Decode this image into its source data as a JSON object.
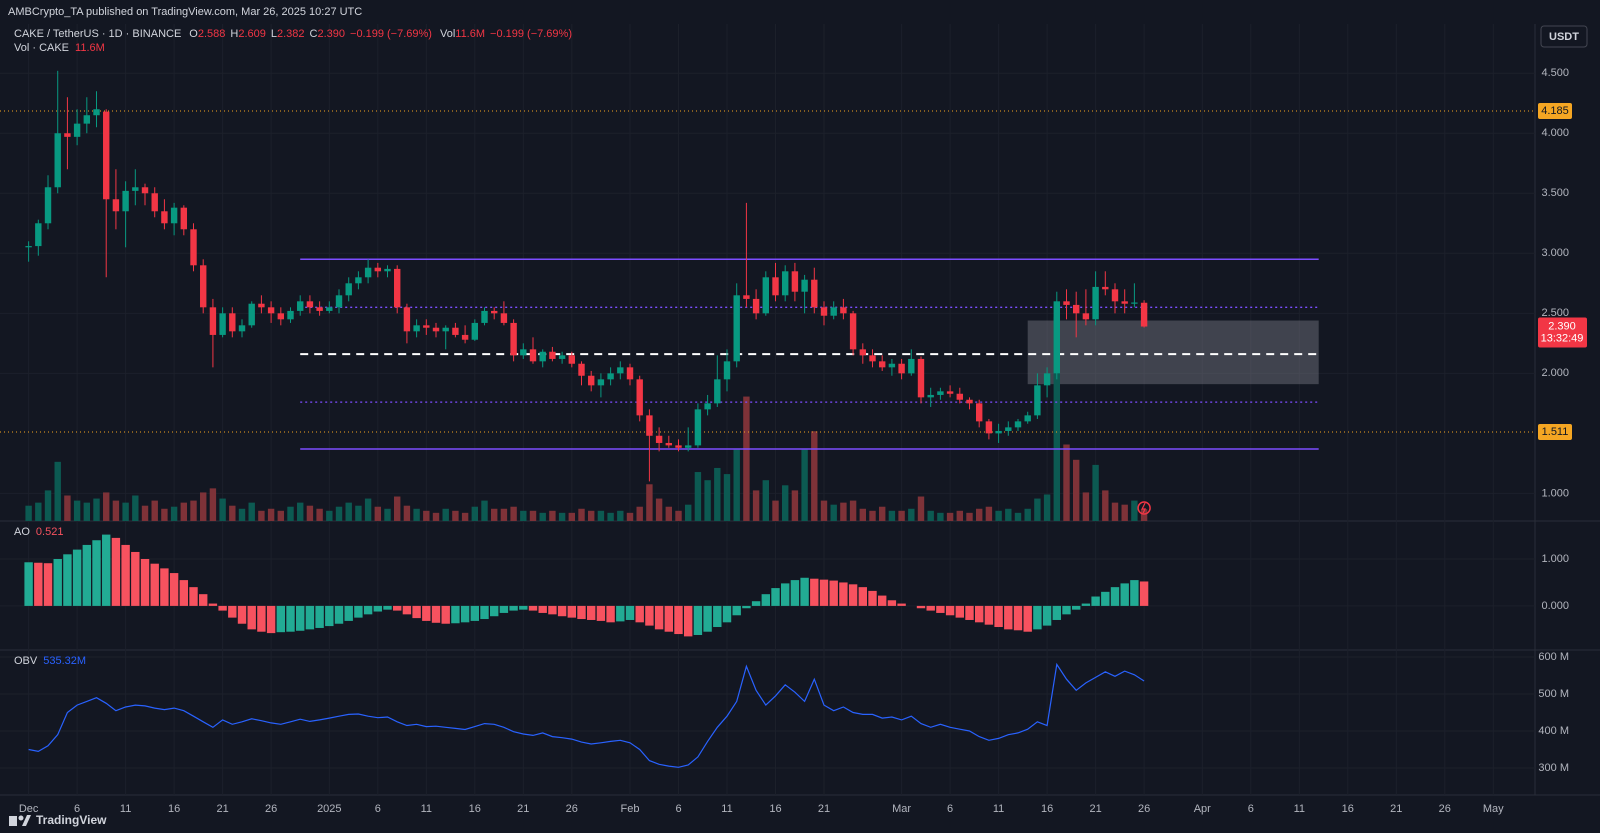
{
  "page": {
    "published": "AMBCrypto_TA published on TradingView.com, Mar 26, 2025 10:27 UTC",
    "brand": "TradingView"
  },
  "chart_data": [
    {
      "type": "candlestick",
      "symbol": "CAKE / TetherUS · 1D · BINANCE",
      "ohlc_legend": [
        {
          "label": "O",
          "value": "2.588"
        },
        {
          "label": "H",
          "value": "2.609"
        },
        {
          "label": "L",
          "value": "2.382"
        },
        {
          "label": "C",
          "value": "2.390"
        }
      ],
      "change": "−0.199 (−7.69%)",
      "volume_legend": {
        "label": "Vol",
        "value": "11.6M",
        "change": "−0.199 (−7.69%)"
      },
      "volume_title": "Vol · CAKE",
      "volume_value": "11.6M",
      "currency": "USDT",
      "colors": {
        "up": "#089981",
        "down": "#f23645",
        "volume_up": "#0c5a52",
        "volume_down": "#7e3238"
      },
      "open": [
        3.05,
        3.06,
        3.25,
        3.55,
        4.0,
        3.97,
        4.08,
        4.15,
        4.18,
        3.45,
        3.35,
        3.52,
        3.55,
        3.5,
        3.35,
        3.25,
        3.38,
        3.2,
        2.9,
        2.55,
        2.32,
        2.5,
        2.35,
        2.4,
        2.58,
        2.55,
        2.5,
        2.45,
        2.52,
        2.6,
        2.55,
        2.52,
        2.55,
        2.65,
        2.75,
        2.8,
        2.88,
        2.85,
        2.87,
        2.55,
        2.35,
        2.4,
        2.38,
        2.35,
        2.38,
        2.32,
        2.28,
        2.42,
        2.52,
        2.5,
        2.42,
        2.15,
        2.2,
        2.1,
        2.18,
        2.12,
        2.15,
        2.08,
        1.98,
        1.9,
        1.95,
        2.0,
        2.05,
        1.95,
        1.65,
        1.48,
        1.42,
        1.4,
        1.38,
        1.4,
        1.7,
        1.75,
        1.95,
        2.1,
        2.65,
        2.62,
        2.5,
        2.8,
        2.65,
        2.85,
        2.68,
        2.78,
        2.55,
        2.48,
        2.55,
        2.5,
        2.2,
        2.15,
        2.1,
        2.05,
        2.08,
        2.0,
        2.12,
        1.8,
        1.82,
        1.85,
        1.83,
        1.78,
        1.75,
        1.6,
        1.5,
        1.52,
        1.55,
        1.6,
        1.65,
        1.9,
        2.0,
        2.6,
        2.57,
        2.5,
        2.45,
        2.72,
        2.7,
        2.6,
        2.58,
        2.588
      ],
      "high": [
        3.1,
        3.28,
        3.65,
        4.52,
        4.3,
        4.2,
        4.3,
        4.35,
        4.2,
        3.7,
        3.6,
        3.7,
        3.58,
        3.55,
        3.45,
        3.42,
        3.4,
        3.25,
        2.95,
        2.62,
        2.55,
        2.55,
        2.45,
        2.6,
        2.65,
        2.6,
        2.55,
        2.55,
        2.65,
        2.65,
        2.6,
        2.6,
        2.7,
        2.8,
        2.85,
        2.95,
        2.92,
        2.9,
        2.9,
        2.58,
        2.45,
        2.45,
        2.42,
        2.4,
        2.42,
        2.4,
        2.45,
        2.55,
        2.55,
        2.6,
        2.45,
        2.25,
        2.3,
        2.2,
        2.22,
        2.18,
        2.18,
        2.1,
        2.02,
        2.0,
        2.05,
        2.1,
        2.08,
        1.98,
        1.7,
        1.55,
        1.48,
        1.45,
        1.55,
        1.75,
        1.82,
        2.15,
        2.2,
        2.75,
        3.42,
        2.7,
        2.85,
        2.92,
        2.9,
        2.92,
        2.82,
        2.88,
        2.6,
        2.6,
        2.62,
        2.52,
        2.25,
        2.2,
        2.15,
        2.12,
        2.12,
        2.2,
        2.14,
        1.88,
        1.88,
        1.9,
        1.88,
        1.8,
        1.78,
        1.62,
        1.58,
        1.6,
        1.62,
        1.68,
        2.0,
        2.05,
        2.68,
        2.7,
        2.68,
        2.7,
        2.85,
        2.85,
        2.75,
        2.7,
        2.75,
        2.609
      ],
      "low": [
        2.93,
        2.98,
        3.2,
        3.5,
        3.7,
        3.9,
        4.0,
        4.05,
        2.8,
        3.2,
        3.05,
        3.4,
        3.4,
        3.3,
        3.2,
        3.15,
        3.15,
        2.85,
        2.5,
        2.05,
        2.3,
        2.3,
        2.3,
        2.38,
        2.5,
        2.42,
        2.4,
        2.42,
        2.48,
        2.5,
        2.48,
        2.5,
        2.5,
        2.6,
        2.7,
        2.75,
        2.8,
        2.8,
        2.5,
        2.25,
        2.3,
        2.32,
        2.3,
        2.2,
        2.3,
        2.25,
        2.27,
        2.4,
        2.45,
        2.4,
        2.1,
        2.12,
        2.08,
        2.05,
        2.1,
        2.08,
        2.05,
        1.9,
        1.85,
        1.8,
        1.9,
        1.95,
        1.9,
        1.6,
        1.1,
        1.35,
        1.38,
        1.35,
        1.35,
        1.38,
        1.65,
        1.72,
        1.85,
        2.05,
        2.55,
        2.45,
        2.48,
        2.6,
        2.6,
        2.6,
        2.5,
        2.5,
        2.4,
        2.45,
        2.45,
        2.15,
        2.08,
        2.05,
        2.02,
        1.98,
        1.95,
        1.98,
        1.75,
        1.72,
        1.78,
        1.8,
        1.75,
        1.7,
        1.55,
        1.45,
        1.42,
        1.48,
        1.52,
        1.58,
        1.62,
        1.8,
        1.95,
        2.45,
        2.3,
        2.4,
        2.4,
        2.65,
        2.5,
        2.5,
        2.55,
        2.382
      ],
      "close": [
        3.06,
        3.25,
        3.55,
        4.0,
        3.97,
        4.08,
        4.15,
        4.2,
        3.45,
        3.35,
        3.52,
        3.55,
        3.5,
        3.35,
        3.25,
        3.38,
        3.2,
        2.9,
        2.55,
        2.32,
        2.5,
        2.35,
        2.4,
        2.58,
        2.55,
        2.5,
        2.45,
        2.52,
        2.6,
        2.55,
        2.52,
        2.55,
        2.65,
        2.75,
        2.8,
        2.88,
        2.85,
        2.87,
        2.55,
        2.35,
        2.4,
        2.38,
        2.35,
        2.38,
        2.32,
        2.28,
        2.42,
        2.52,
        2.5,
        2.42,
        2.15,
        2.2,
        2.1,
        2.18,
        2.12,
        2.15,
        2.08,
        1.98,
        1.9,
        1.95,
        2.0,
        2.05,
        1.95,
        1.65,
        1.48,
        1.42,
        1.4,
        1.38,
        1.4,
        1.7,
        1.75,
        1.95,
        2.1,
        2.65,
        2.62,
        2.5,
        2.8,
        2.65,
        2.85,
        2.68,
        2.78,
        2.55,
        2.48,
        2.55,
        2.5,
        2.2,
        2.15,
        2.1,
        2.05,
        2.08,
        2.0,
        2.12,
        1.8,
        1.82,
        1.85,
        1.83,
        1.78,
        1.75,
        1.6,
        1.5,
        1.52,
        1.55,
        1.6,
        1.65,
        1.9,
        2.0,
        2.6,
        2.57,
        2.5,
        2.45,
        2.72,
        2.7,
        2.6,
        2.58,
        2.59,
        2.39
      ],
      "volume": [
        15,
        18,
        30,
        58,
        25,
        20,
        18,
        22,
        28,
        20,
        18,
        25,
        15,
        20,
        12,
        14,
        18,
        20,
        28,
        32,
        22,
        15,
        12,
        18,
        10,
        12,
        10,
        14,
        18,
        15,
        12,
        10,
        14,
        18,
        15,
        22,
        14,
        12,
        24,
        15,
        12,
        10,
        8,
        12,
        10,
        8,
        14,
        20,
        12,
        12,
        14,
        10,
        10,
        8,
        10,
        8,
        8,
        12,
        10,
        10,
        8,
        10,
        8,
        14,
        36,
        22,
        14,
        10,
        16,
        48,
        40,
        52,
        46,
        70,
        122,
        30,
        40,
        20,
        35,
        30,
        70,
        88,
        20,
        16,
        18,
        20,
        12,
        10,
        14,
        10,
        10,
        12,
        24,
        10,
        8,
        8,
        10,
        8,
        12,
        14,
        10,
        12,
        8,
        12,
        22,
        26,
        200,
        75,
        60,
        28,
        55,
        30,
        18,
        16,
        20,
        11.6
      ],
      "xlim": [
        -2.95,
        155.3
      ],
      "xticks": [
        {
          "value": 0,
          "label": "Dec"
        },
        {
          "value": 5,
          "label": "6"
        },
        {
          "value": 10,
          "label": "11"
        },
        {
          "value": 15,
          "label": "16"
        },
        {
          "value": 20,
          "label": "21"
        },
        {
          "value": 25,
          "label": "26"
        },
        {
          "value": 31,
          "label": "2025"
        },
        {
          "value": 36,
          "label": "6"
        },
        {
          "value": 41,
          "label": "11"
        },
        {
          "value": 46,
          "label": "16"
        },
        {
          "value": 51,
          "label": "21"
        },
        {
          "value": 56,
          "label": "26"
        },
        {
          "value": 62,
          "label": "Feb"
        },
        {
          "value": 67,
          "label": "6"
        },
        {
          "value": 72,
          "label": "11"
        },
        {
          "value": 77,
          "label": "16"
        },
        {
          "value": 82,
          "label": "21"
        },
        {
          "value": 90,
          "label": "Mar"
        },
        {
          "value": 95,
          "label": "6"
        },
        {
          "value": 100,
          "label": "11"
        },
        {
          "value": 105,
          "label": "16"
        },
        {
          "value": 110,
          "label": "21"
        },
        {
          "value": 115,
          "label": "26"
        },
        {
          "value": 121,
          "label": "Apr"
        },
        {
          "value": 126,
          "label": "6"
        },
        {
          "value": 131,
          "label": "11"
        },
        {
          "value": 136,
          "label": "16"
        },
        {
          "value": 141,
          "label": "21"
        },
        {
          "value": 146,
          "label": "26"
        },
        {
          "value": 151,
          "label": "May"
        }
      ],
      "ylim": [
        0.77,
        4.91
      ],
      "yticks": [
        {
          "value": 1,
          "label": "1.000"
        },
        {
          "value": 2,
          "label": "2.000"
        },
        {
          "value": 2.5,
          "label": "2.500"
        },
        {
          "value": 3,
          "label": "3.000"
        },
        {
          "value": 3.5,
          "label": "3.500"
        },
        {
          "value": 4,
          "label": "4.000"
        },
        {
          "value": 4.5,
          "label": "4.500"
        }
      ],
      "grid": true,
      "key_levels": {
        "color": "#f5a623",
        "values": [
          4.185,
          1.511
        ]
      },
      "range_lines": {
        "color": "#7c4dff",
        "x": [
          28,
          133
        ],
        "lines": [
          {
            "value": 2.95,
            "style": "solid"
          },
          {
            "value": 2.55,
            "style": "dotted"
          },
          {
            "value": 2.16,
            "style": "dashed",
            "color": "#ffffff"
          },
          {
            "value": 1.76,
            "style": "dotted"
          },
          {
            "value": 1.37,
            "style": "solid"
          }
        ]
      },
      "zone": {
        "x": [
          103,
          133
        ],
        "y": [
          1.91,
          2.44
        ],
        "color": "#787b86"
      },
      "last_price": {
        "value": 2.39,
        "label": "2.390",
        "countdown": "13:32:49"
      }
    },
    {
      "type": "bar",
      "title": "AO",
      "colors": {
        "up": "#22ab94",
        "down": "#f7525f"
      },
      "values": [
        0.93,
        0.92,
        0.91,
        1.0,
        1.1,
        1.2,
        1.3,
        1.4,
        1.52,
        1.45,
        1.3,
        1.15,
        1.0,
        0.9,
        0.8,
        0.7,
        0.55,
        0.4,
        0.25,
        0.05,
        -0.1,
        -0.25,
        -0.38,
        -0.5,
        -0.55,
        -0.58,
        -0.56,
        -0.55,
        -0.53,
        -0.5,
        -0.47,
        -0.43,
        -0.38,
        -0.32,
        -0.25,
        -0.18,
        -0.12,
        -0.08,
        -0.1,
        -0.18,
        -0.26,
        -0.32,
        -0.36,
        -0.38,
        -0.37,
        -0.35,
        -0.32,
        -0.28,
        -0.22,
        -0.15,
        -0.1,
        -0.08,
        -0.1,
        -0.15,
        -0.18,
        -0.22,
        -0.25,
        -0.28,
        -0.3,
        -0.32,
        -0.35,
        -0.33,
        -0.3,
        -0.35,
        -0.42,
        -0.5,
        -0.55,
        -0.6,
        -0.65,
        -0.62,
        -0.55,
        -0.45,
        -0.35,
        -0.2,
        -0.05,
        0.1,
        0.25,
        0.38,
        0.48,
        0.55,
        0.6,
        0.58,
        0.56,
        0.54,
        0.5,
        0.46,
        0.4,
        0.32,
        0.22,
        0.12,
        0.05,
        0.0,
        -0.05,
        -0.1,
        -0.15,
        -0.2,
        -0.25,
        -0.3,
        -0.35,
        -0.4,
        -0.45,
        -0.5,
        -0.52,
        -0.55,
        -0.5,
        -0.42,
        -0.3,
        -0.18,
        -0.08,
        0.05,
        0.2,
        0.3,
        0.4,
        0.48,
        0.55,
        0.521
      ],
      "xlim": [
        -2.95,
        155.3
      ],
      "ylim": [
        -0.94,
        1.81
      ],
      "yticks": [
        {
          "value": 0,
          "label": "0.000"
        },
        {
          "value": 1,
          "label": "1.000"
        }
      ],
      "grid": true
    },
    {
      "type": "line",
      "title": "OBV",
      "legend_value": "535.32M",
      "color": "#2962ff",
      "values": [
        350,
        345,
        360,
        390,
        450,
        470,
        480,
        490,
        475,
        455,
        465,
        470,
        468,
        462,
        458,
        462,
        455,
        440,
        425,
        410,
        430,
        418,
        425,
        433,
        428,
        422,
        418,
        425,
        432,
        426,
        430,
        435,
        440,
        445,
        446,
        440,
        436,
        438,
        425,
        415,
        418,
        412,
        413,
        410,
        407,
        404,
        412,
        420,
        418,
        410,
        398,
        392,
        388,
        395,
        385,
        382,
        378,
        370,
        365,
        368,
        372,
        375,
        368,
        350,
        320,
        310,
        305,
        302,
        308,
        330,
        372,
        410,
        440,
        480,
        575,
        510,
        470,
        495,
        525,
        505,
        480,
        540,
        470,
        455,
        465,
        450,
        445,
        445,
        435,
        438,
        430,
        440,
        420,
        410,
        418,
        410,
        405,
        400,
        385,
        375,
        380,
        390,
        395,
        405,
        425,
        415,
        580,
        540,
        510,
        530,
        545,
        560,
        548,
        562,
        552,
        535.32
      ],
      "xlim": [
        -2.95,
        155.3
      ],
      "ylim": [
        227,
        619
      ],
      "yticks": [
        {
          "value": 300,
          "label": "300 M"
        },
        {
          "value": 400,
          "label": "400 M"
        },
        {
          "value": 500,
          "label": "500 M"
        },
        {
          "value": 600,
          "label": "600 M"
        }
      ],
      "grid": true
    }
  ]
}
